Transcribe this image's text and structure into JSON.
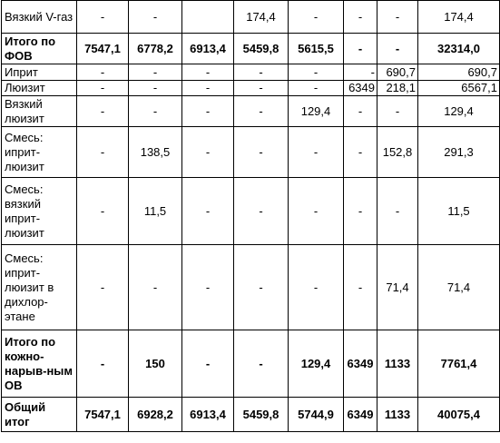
{
  "rows": [
    {
      "name": "Вязкий V-газ",
      "bold": false,
      "cells": [
        "-",
        "-",
        "",
        "174,4",
        "-",
        "-",
        "-",
        "174,4"
      ]
    },
    {
      "name": "Итого по ФОВ",
      "bold": true,
      "cells": [
        "7547,1",
        "6778,2",
        "6913,4",
        "5459,8",
        "5615,5",
        "-",
        "-",
        "32314,0"
      ]
    },
    {
      "name": "Иприт",
      "bold": false,
      "cells": [
        "-",
        "-",
        "-",
        "-",
        "-",
        "-",
        "690,7",
        "690,7"
      ]
    },
    {
      "name": "Люизит",
      "bold": false,
      "cells": [
        "-",
        "-",
        "-",
        "-",
        "-",
        "6349",
        "218,1",
        "6567,1"
      ]
    },
    {
      "name": "Вязкий люизит",
      "bold": false,
      "cells": [
        "-",
        "-",
        "-",
        "-",
        "129,4",
        "-",
        "-",
        "129,4"
      ]
    },
    {
      "name": "Смесь: иприт-люизит",
      "bold": false,
      "cells": [
        "-",
        "138,5",
        "-",
        "-",
        "-",
        "-",
        "152,8",
        "291,3"
      ]
    },
    {
      "name": "Смесь: вязкий иприт-люизит",
      "bold": false,
      "cells": [
        "-",
        "11,5",
        "-",
        "-",
        "-",
        "-",
        "-",
        "11,5"
      ]
    },
    {
      "name": "Смесь: иприт-люизит в дихлор-этане",
      "bold": false,
      "cells": [
        "-",
        "-",
        "-",
        "-",
        "-",
        "-",
        "71,4",
        "71,4"
      ]
    },
    {
      "name": "Итого по кожно-нарыв-ным ОВ",
      "bold": true,
      "cells": [
        "-",
        "150",
        "-",
        "-",
        "129,4",
        "6349",
        "1133",
        "7761,4"
      ]
    },
    {
      "name": "Общий итог",
      "bold": true,
      "cells": [
        "7547,1",
        "6928,2",
        "6913,4",
        "5459,8",
        "5744,9",
        "6349",
        "1133",
        "40075,4"
      ]
    }
  ]
}
